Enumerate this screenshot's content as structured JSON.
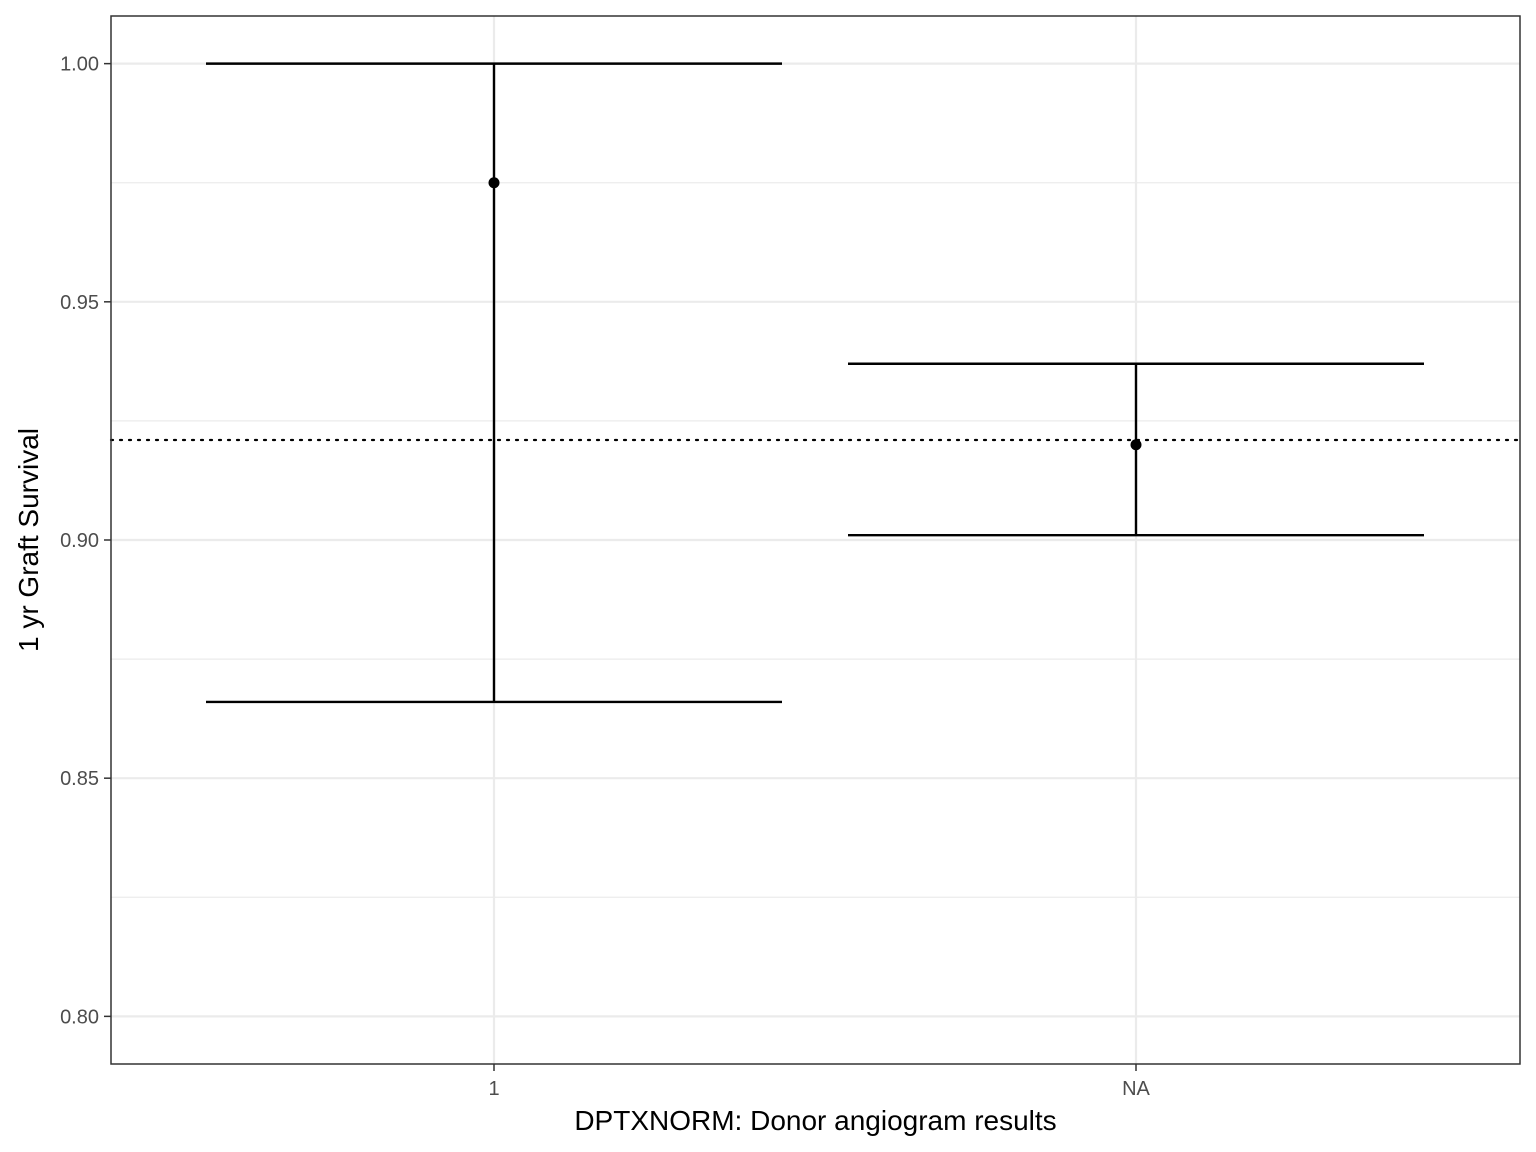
{
  "chart_data": {
    "type": "errorbar",
    "title": "",
    "xlabel": "DPTXNORM: Donor angiogram results",
    "ylabel": "1 yr Graft Survival",
    "categories": [
      "1",
      "NA"
    ],
    "series": [
      {
        "estimate": [
          0.975,
          0.92
        ],
        "lower": [
          0.866,
          0.901
        ],
        "upper": [
          1.0,
          0.937
        ]
      }
    ],
    "reference_line": {
      "y": 0.921,
      "style": "dotted"
    },
    "ylim": [
      0.79,
      1.01
    ],
    "yticks": [
      0.8,
      0.85,
      0.9,
      0.95,
      1.0
    ],
    "ytick_labels": [
      "0.80",
      "0.85",
      "0.90",
      "0.95",
      "1.00"
    ],
    "grid": true,
    "legend": "none",
    "colors": {
      "mark": "#000000",
      "grid": "#ebebeb",
      "panel_border": "#333333",
      "tick_text": "#4d4d4d"
    }
  }
}
